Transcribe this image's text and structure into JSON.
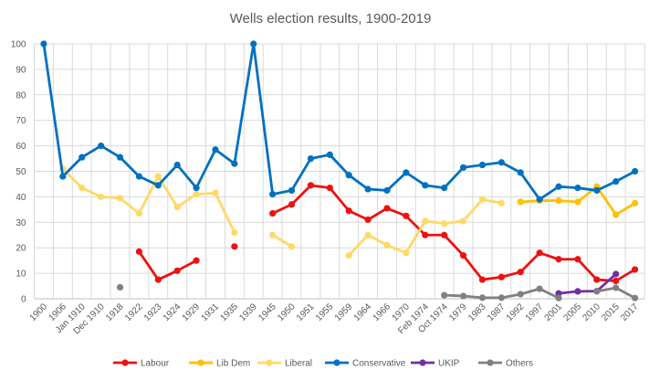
{
  "chart_data": {
    "type": "line",
    "title": "Wells election results, 1900-2019",
    "xlabel": "",
    "ylabel": "",
    "ylim": [
      0,
      100
    ],
    "yticks": [
      0,
      10,
      20,
      30,
      40,
      50,
      60,
      70,
      80,
      90,
      100
    ],
    "grid": true,
    "legend_position": "bottom",
    "categories": [
      "1900",
      "1906",
      "Jan 1910",
      "Dec 1910",
      "1918",
      "1922",
      "1923",
      "1924",
      "1929",
      "1931",
      "1935",
      "1939",
      "1945",
      "1950",
      "1951",
      "1955",
      "1959",
      "1964",
      "1966",
      "1970",
      "Feb 1974",
      "Oct 1974",
      "1979",
      "1983",
      "1987",
      "1992",
      "1997",
      "2001",
      "2005",
      "2010",
      "2015",
      "2017"
    ],
    "series": [
      {
        "name": "Labour",
        "color": "#EE1111",
        "values": [
          null,
          null,
          null,
          null,
          null,
          18.5,
          7.5,
          11,
          15,
          null,
          20.5,
          null,
          33.5,
          37,
          44.5,
          43.5,
          34.5,
          31,
          35.5,
          32.5,
          25,
          25,
          17,
          7.5,
          8.5,
          10.5,
          18,
          15.5,
          15.5,
          7.5,
          7,
          11.5
        ]
      },
      {
        "name": "Lib Dem",
        "color": "#FFC000",
        "values": [
          null,
          null,
          null,
          null,
          null,
          null,
          null,
          null,
          null,
          null,
          null,
          null,
          null,
          null,
          null,
          null,
          null,
          null,
          null,
          null,
          null,
          null,
          null,
          null,
          null,
          38,
          38.5,
          38.5,
          38,
          44,
          33,
          37.5
        ]
      },
      {
        "name": "Liberal",
        "color": "#FFD966",
        "values": [
          null,
          51,
          43.5,
          40,
          39.5,
          33.5,
          48,
          36,
          41,
          41.5,
          26,
          null,
          25,
          20.5,
          null,
          null,
          17,
          25,
          21,
          18,
          30.5,
          29.5,
          30.5,
          39,
          37.5,
          null,
          null,
          null,
          null,
          null,
          null,
          null
        ]
      },
      {
        "name": "Conservative",
        "color": "#0070C0",
        "values": [
          100,
          48,
          55.5,
          60,
          55.5,
          48,
          44.5,
          52.5,
          43.5,
          58.5,
          53,
          100,
          41,
          42.5,
          55,
          56.5,
          48.5,
          43,
          42.5,
          49.5,
          44.5,
          43.5,
          51.5,
          52.5,
          53.5,
          49.5,
          39,
          44,
          43.5,
          42.5,
          46,
          50
        ]
      },
      {
        "name": "UKIP",
        "color": "#7030A0",
        "values": [
          null,
          null,
          null,
          null,
          null,
          null,
          null,
          null,
          null,
          null,
          null,
          null,
          null,
          null,
          null,
          null,
          null,
          null,
          null,
          null,
          null,
          null,
          null,
          null,
          null,
          null,
          null,
          2.1,
          2.9,
          3,
          9.7,
          null
        ]
      },
      {
        "name": "Others",
        "color": "#808080",
        "values": [
          null,
          null,
          null,
          null,
          4.5,
          null,
          null,
          null,
          null,
          null,
          null,
          null,
          null,
          null,
          null,
          null,
          null,
          null,
          null,
          null,
          null,
          1.4,
          1.1,
          0.4,
          0.4,
          1.8,
          3.9,
          0.3,
          null,
          2.9,
          4.3,
          0.3
        ]
      }
    ]
  }
}
